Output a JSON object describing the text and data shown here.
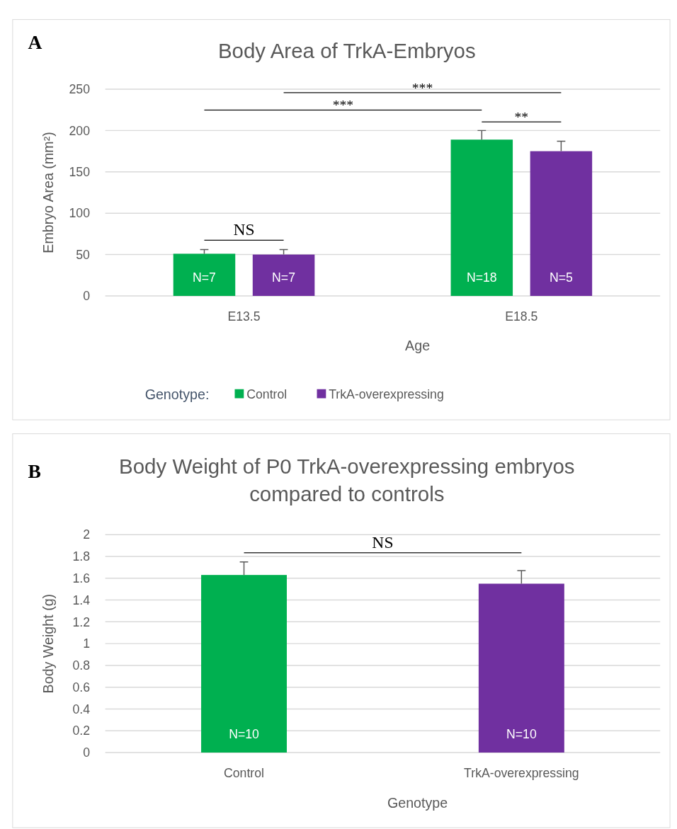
{
  "chart_data": [
    {
      "type": "bar",
      "title": "Body Area of TrkA-Embryos",
      "xlabel": "Age",
      "ylabel": "Embryo Area (mm²)",
      "legend_title": "Genotype:",
      "legend": "bottom",
      "grid": "y",
      "categories": [
        "E13.5",
        "E18.5"
      ],
      "ylim": [
        0,
        250
      ],
      "yticks": [
        0,
        50,
        100,
        150,
        200,
        250
      ],
      "series": [
        {
          "name": "Control",
          "color": "#00b050",
          "values": [
            51,
            189
          ],
          "errors": [
            [
              51,
              56
            ],
            [
              189,
              200
            ]
          ]
        },
        {
          "name": "TrkA-overexpressing",
          "color": "#7030a0",
          "values": [
            50,
            175
          ],
          "errors": [
            [
              50,
              56
            ],
            [
              175,
              187
            ]
          ]
        }
      ],
      "annotations": [
        "A",
        "***",
        "***",
        "**",
        "NS",
        "N=7",
        "N=18",
        "N=7",
        "N=5"
      ]
    },
    {
      "type": "bar",
      "title": "Body Weight of P0 TrkA-overexpressing embryos compared to controls",
      "xlabel": "Genotype",
      "ylabel": "Body Weight (g)",
      "grid": "y",
      "categories": [
        "Control",
        "TrkA-overexpressing"
      ],
      "values": [
        1.63,
        1.55
      ],
      "colors": [
        "#00b050",
        "#7030a0"
      ],
      "errors": [
        [
          1.63,
          1.75
        ],
        [
          1.55,
          1.67
        ]
      ],
      "ylim": [
        0,
        2
      ],
      "yticks": [
        0,
        0.2,
        0.4,
        0.6,
        0.8,
        1,
        1.2,
        1.4,
        1.6,
        1.8,
        2
      ],
      "annotations": [
        "B",
        "NS",
        "N=10",
        "N=10"
      ]
    }
  ]
}
